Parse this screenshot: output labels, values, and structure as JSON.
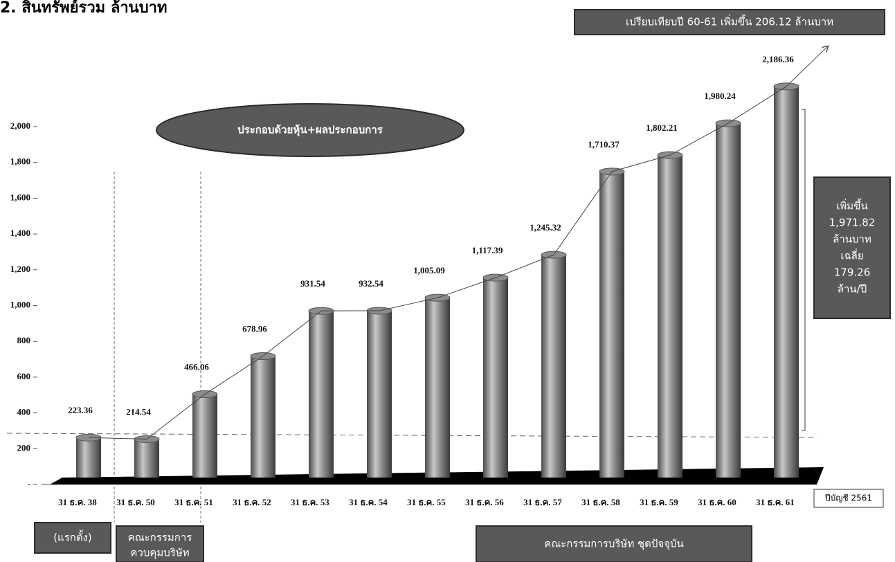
{
  "chart_data": {
    "type": "bar3d",
    "title": "2. สินทรัพย์รวม ล้านบาท",
    "categories": [
      "31 ธ.ค. 38",
      "31 ธ.ค. 50",
      "31 ธ.ค. 51",
      "31 ธ.ค. 52",
      "31 ธ.ค. 53",
      "31 ธ.ค. 54",
      "31 ธ.ค. 55",
      "31 ธ.ค. 56",
      "31 ธ.ค. 57",
      "31 ธ.ค. 58",
      "31 ธ.ค. 59",
      "31 ธ.ค. 60",
      "31 ธ.ค. 61"
    ],
    "values": [
      223.36,
      214.54,
      466.06,
      678.96,
      931.54,
      932.54,
      1005.09,
      1117.39,
      1245.32,
      1710.37,
      1802.21,
      1980.24,
      2186.36
    ],
    "value_labels": [
      "223.36",
      "214.54",
      "466.06",
      "678.96",
      "931.54",
      "932.54",
      "1,005.09",
      "1,117.39",
      "1,245.32",
      "1,710.37",
      "1,802.21",
      "1,980.24",
      "2,186.36"
    ],
    "color": "#8c8c8c",
    "ylim": [
      0,
      2200
    ],
    "yticks": [
      {
        "value": 0,
        "label": "-"
      },
      200,
      400,
      600,
      800,
      {
        "value": 1000,
        "label": "1,000"
      },
      {
        "value": 1200,
        "label": "1,200"
      },
      {
        "value": 1400,
        "label": "1,400"
      },
      {
        "value": 1600,
        "label": "1,600"
      },
      {
        "value": 1800,
        "label": "1,800"
      },
      {
        "value": 2000,
        "label": "2,000"
      }
    ],
    "x_axis_note": "ปีบัญชี 2561",
    "annotations": {
      "comparison": "เปรียบเทียบปี 60-61 เพิ่มขึ้น 206.12 ล้านบาท",
      "composition": "ประกอบด้วยหุ้น+ผลประกอบการ",
      "increase": [
        "เพิ่มขึ้น",
        "1,971.82",
        "ล้านบาท",
        "เฉลี่ย",
        "179.26",
        "ล้าน/ปี"
      ],
      "founding": "(แรกตั้ง)",
      "control_board": [
        "คณะกรรมการ",
        "ควบคุมบริษัท"
      ],
      "current_board": "คณะกรรมการบริษัท ชุดปัจจุบัน"
    }
  }
}
